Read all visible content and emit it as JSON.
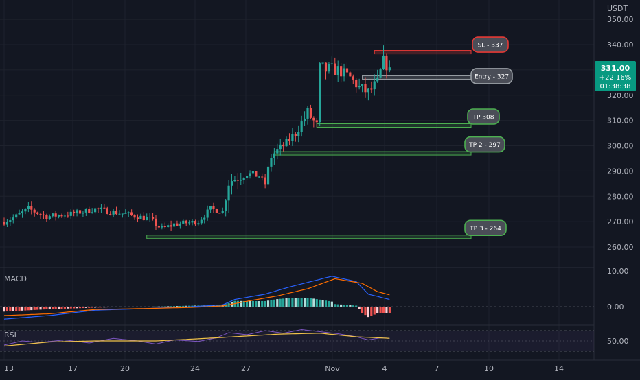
{
  "colors": {
    "background": "#131722",
    "grid": "#1e222d",
    "up": "#26a69a",
    "down": "#ef5350",
    "axis_text": "#b2b5be",
    "macd_line": "#2962ff",
    "signal_line": "#ff6d00",
    "rsi_line": "#7e57c2",
    "rsi_ma": "#f0c24a",
    "tp_green": "#4caf50",
    "sl_red": "#e53935",
    "entry_grey": "#9aa0a6",
    "price_badge": "#089981"
  },
  "price_axis": {
    "currency": "USDT",
    "ticks": [
      "350.00",
      "340.00",
      "330.00",
      "320.00",
      "310.00",
      "300.00",
      "290.00",
      "280.00",
      "270.00",
      "260.00"
    ]
  },
  "price_badge": {
    "price": "331.00",
    "change": "+22.16%",
    "countdown": "01:38:38"
  },
  "x_axis": {
    "ticks": [
      "13",
      "17",
      "20",
      "24",
      "27",
      "Nov",
      "4",
      "7",
      "10",
      "14"
    ]
  },
  "macd": {
    "label": "MACD",
    "ticks": [
      "10.00",
      "0.00"
    ]
  },
  "rsi": {
    "label": "RSI",
    "ticks": [
      "50.00"
    ]
  },
  "chart_data": {
    "type": "candlestick",
    "price_range": [
      255,
      352
    ],
    "levels": [
      {
        "label": "SL - 337",
        "price": 337,
        "kind": "stop"
      },
      {
        "label": "Entry - 327",
        "price": 327,
        "kind": "entry"
      },
      {
        "label": "TP 308",
        "price": 308,
        "kind": "target"
      },
      {
        "label": "TP 2 - 297",
        "price": 297,
        "kind": "target"
      },
      {
        "label": "TP 3 - 264",
        "price": 264,
        "kind": "target"
      }
    ],
    "waypoints": [
      [
        0,
        270,
        1.2
      ],
      [
        4,
        272,
        1.4
      ],
      [
        8,
        275,
        1.5
      ],
      [
        14,
        272,
        1.2
      ],
      [
        22,
        273,
        1.2
      ],
      [
        30,
        275,
        1.2
      ],
      [
        40,
        273,
        1.2
      ],
      [
        48,
        271,
        1.2
      ],
      [
        52,
        267,
        1.5
      ],
      [
        56,
        269,
        1.2
      ],
      [
        64,
        270,
        1.0
      ],
      [
        68,
        275,
        1.3
      ],
      [
        72,
        274,
        1.0
      ],
      [
        74,
        286,
        3.5
      ],
      [
        80,
        289,
        1.5
      ],
      [
        84,
        288,
        1.2
      ],
      [
        86,
        285,
        1.2
      ],
      [
        88,
        296,
        3.0
      ],
      [
        92,
        300,
        1.5
      ],
      [
        96,
        305,
        2.0
      ],
      [
        100,
        313,
        2.5
      ],
      [
        103,
        308,
        2.0
      ],
      [
        104,
        330,
        3.5
      ],
      [
        110,
        330,
        2.5
      ],
      [
        114,
        327,
        2.2
      ],
      [
        117,
        323,
        2.5
      ],
      [
        120,
        321,
        2.5
      ],
      [
        123,
        325,
        2.5
      ],
      [
        125,
        333,
        3.0
      ],
      [
        127,
        331,
        2.0
      ]
    ],
    "macd_series": {
      "macd": [
        [
          0,
          -3.5
        ],
        [
          15,
          -2.5
        ],
        [
          30,
          -1
        ],
        [
          48,
          -0.5
        ],
        [
          62,
          0
        ],
        [
          72,
          0.5
        ],
        [
          76,
          2
        ],
        [
          86,
          3.5
        ],
        [
          94,
          5.5
        ],
        [
          101,
          7
        ],
        [
          108,
          8.5
        ],
        [
          116,
          7
        ],
        [
          120,
          3.5
        ],
        [
          127,
          2
        ]
      ],
      "signal": [
        [
          0,
          -2.5
        ],
        [
          15,
          -2
        ],
        [
          30,
          -0.8
        ],
        [
          48,
          -0.5
        ],
        [
          62,
          -0.2
        ],
        [
          72,
          0.2
        ],
        [
          80,
          1.5
        ],
        [
          90,
          3
        ],
        [
          100,
          5
        ],
        [
          109,
          7.8
        ],
        [
          118,
          6.5
        ],
        [
          123,
          4.2
        ],
        [
          127,
          3.3
        ]
      ]
    },
    "rsi_series": {
      "rsi": [
        [
          0,
          42
        ],
        [
          6,
          50
        ],
        [
          12,
          47
        ],
        [
          20,
          52
        ],
        [
          28,
          46
        ],
        [
          36,
          55
        ],
        [
          44,
          50
        ],
        [
          50,
          44
        ],
        [
          56,
          52
        ],
        [
          64,
          49
        ],
        [
          70,
          56
        ],
        [
          74,
          66
        ],
        [
          80,
          62
        ],
        [
          86,
          70
        ],
        [
          92,
          65
        ],
        [
          98,
          72
        ],
        [
          104,
          68
        ],
        [
          110,
          64
        ],
        [
          116,
          58
        ],
        [
          120,
          52
        ],
        [
          124,
          56
        ],
        [
          127,
          55
        ]
      ],
      "ma": [
        [
          0,
          40
        ],
        [
          15,
          48
        ],
        [
          30,
          50
        ],
        [
          50,
          50
        ],
        [
          70,
          56
        ],
        [
          90,
          63
        ],
        [
          104,
          65
        ],
        [
          116,
          58
        ],
        [
          127,
          55
        ]
      ]
    }
  }
}
